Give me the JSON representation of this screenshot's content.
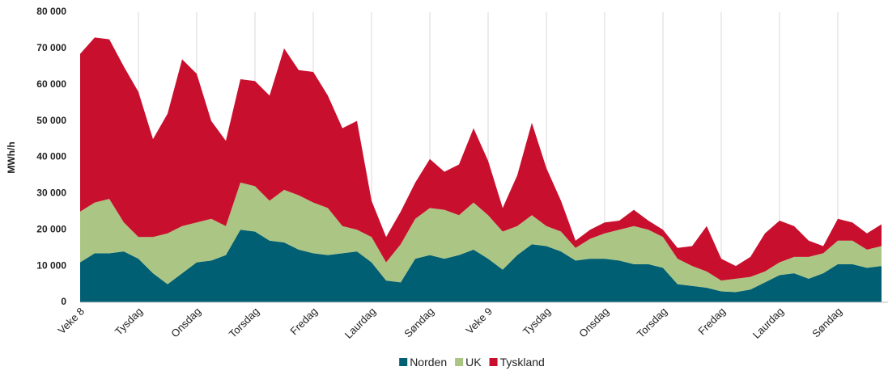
{
  "chart_data": {
    "type": "stacked_area",
    "y_label": "MWh/h",
    "categories": [
      "Veke 8",
      null,
      null,
      null,
      "Tysdag",
      null,
      null,
      null,
      "Onsdag",
      null,
      null,
      null,
      "Torsdag",
      null,
      null,
      null,
      "Fredag",
      null,
      null,
      null,
      "Laurdag",
      null,
      null,
      null,
      "Søndag",
      null,
      null,
      null,
      "Veke 9",
      null,
      null,
      null,
      "Tysdag",
      null,
      null,
      null,
      "Onsdag",
      null,
      null,
      null,
      "Torsdag",
      null,
      null,
      null,
      "Fredag",
      null,
      null,
      null,
      "Laurdag",
      null,
      null,
      null,
      "Søndag",
      null,
      null,
      null
    ],
    "series": [
      {
        "name": "Norden",
        "color": "#005f73",
        "values": [
          11000,
          13500,
          13500,
          14000,
          12000,
          8000,
          5000,
          8000,
          11000,
          11500,
          13000,
          20000,
          19500,
          17000,
          16500,
          14500,
          13500,
          13000,
          13500,
          14000,
          11000,
          6000,
          5500,
          12000,
          13000,
          12000,
          13000,
          14500,
          12000,
          9000,
          13000,
          16000,
          15500,
          14000,
          11500,
          12000,
          12000,
          11500,
          10500,
          10500,
          9500,
          5000,
          4500,
          4000,
          3000,
          2800,
          3500,
          5500,
          7500,
          8000,
          6500,
          8000,
          10500,
          10500,
          9500,
          10000
        ]
      },
      {
        "name": "UK",
        "color": "#abc584",
        "values": [
          14000,
          14000,
          15000,
          8000,
          6000,
          10000,
          14000,
          13000,
          11000,
          11500,
          8000,
          13000,
          12500,
          11000,
          14500,
          15000,
          14000,
          13000,
          7500,
          6000,
          7000,
          5000,
          10500,
          11000,
          13000,
          13500,
          11000,
          13000,
          12000,
          10500,
          8000,
          8000,
          5500,
          5500,
          3500,
          5500,
          7000,
          8500,
          10500,
          9500,
          8500,
          7000,
          5500,
          4500,
          3000,
          3700,
          3500,
          3000,
          3500,
          4500,
          6000,
          5500,
          6500,
          6500,
          5000,
          5500
        ]
      },
      {
        "name": "Tyskland",
        "color": "#c8102e",
        "values": [
          43500,
          45500,
          44000,
          43000,
          40000,
          27000,
          33000,
          46000,
          41000,
          27000,
          23500,
          28500,
          29000,
          29000,
          39000,
          34500,
          36000,
          31000,
          27000,
          30000,
          10000,
          7000,
          9000,
          10000,
          13500,
          10500,
          14000,
          20500,
          15000,
          6500,
          14000,
          25500,
          16000,
          8500,
          2000,
          2500,
          3000,
          2500,
          4500,
          2500,
          2000,
          3000,
          5500,
          12500,
          6000,
          3500,
          5500,
          10500,
          11500,
          8500,
          4500,
          2000,
          6000,
          5000,
          4500,
          6000
        ]
      }
    ],
    "ylim": [
      0,
      80000
    ],
    "yticks": [
      0,
      {
        "value": 10000,
        "label": "10 000"
      },
      {
        "value": 20000,
        "label": "20 000"
      },
      {
        "value": 30000,
        "label": "30 000"
      },
      {
        "value": 40000,
        "label": "40 000"
      },
      {
        "value": 50000,
        "label": "50 000"
      },
      {
        "value": 60000,
        "label": "60 000"
      },
      {
        "value": 70000,
        "label": "70 000"
      },
      {
        "value": 80000,
        "label": "80 000"
      }
    ],
    "grid": true
  }
}
